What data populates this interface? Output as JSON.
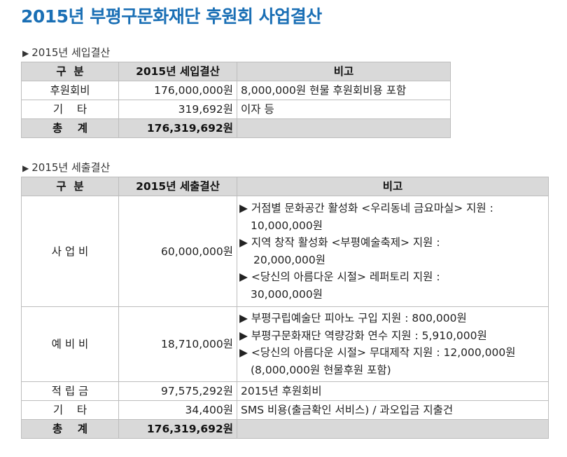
{
  "title": "2015년 부평구문화재단 후원회 사업결산",
  "income": {
    "heading": "2015년 세입결산",
    "headers": [
      "구  분",
      "2015년 세입결산",
      "비고"
    ],
    "rows": [
      {
        "label": "후원회비",
        "amount": "176,000,000원",
        "note": "8,000,000원 현물 후원회비용 포함"
      },
      {
        "label": "기    타",
        "amount": "319,692원",
        "note": "이자 등"
      }
    ],
    "total": {
      "label": "총    계",
      "amount": "176,319,692원",
      "note": ""
    }
  },
  "expense": {
    "heading": "2015년 세출결산",
    "headers": [
      "구  분",
      "2015년 세출결산",
      "비고"
    ],
    "business": {
      "label": "사 업 비",
      "amount": "60,000,000원",
      "notes": [
        "▶ 거점별 문화공간 활성화 <우리동네 금요마실> 지원 :",
        "10,000,000원",
        "▶ 지역 창작 활성화 <부평예술축제> 지원 :",
        "20,000,000원",
        "▶ <당신의 아름다운 시절> 레퍼토리 지원 :",
        "30,000,000원"
      ]
    },
    "reserve": {
      "label": "예 비 비",
      "amount": "18,710,000원",
      "notes": [
        "▶ 부평구립예술단 피아노 구입 지원 : 800,000원",
        "▶ 부평구문화재단 역량강화 연수 지원 : 5,910,000원",
        "▶ <당신의 아름다운 시절> 무대제작 지원 : 12,000,000원",
        "(8,000,000원 현물후원 포함)"
      ]
    },
    "rows": [
      {
        "label": "적 립 금",
        "amount": "97,575,292원",
        "note": "2015년 후원회비"
      },
      {
        "label": "기    타",
        "amount": "34,400원",
        "note": "SMS 비용(출금확인 서비스) / 과오입금 지출건"
      }
    ],
    "total": {
      "label": "총    계",
      "amount": "176,319,692원",
      "note": ""
    }
  }
}
